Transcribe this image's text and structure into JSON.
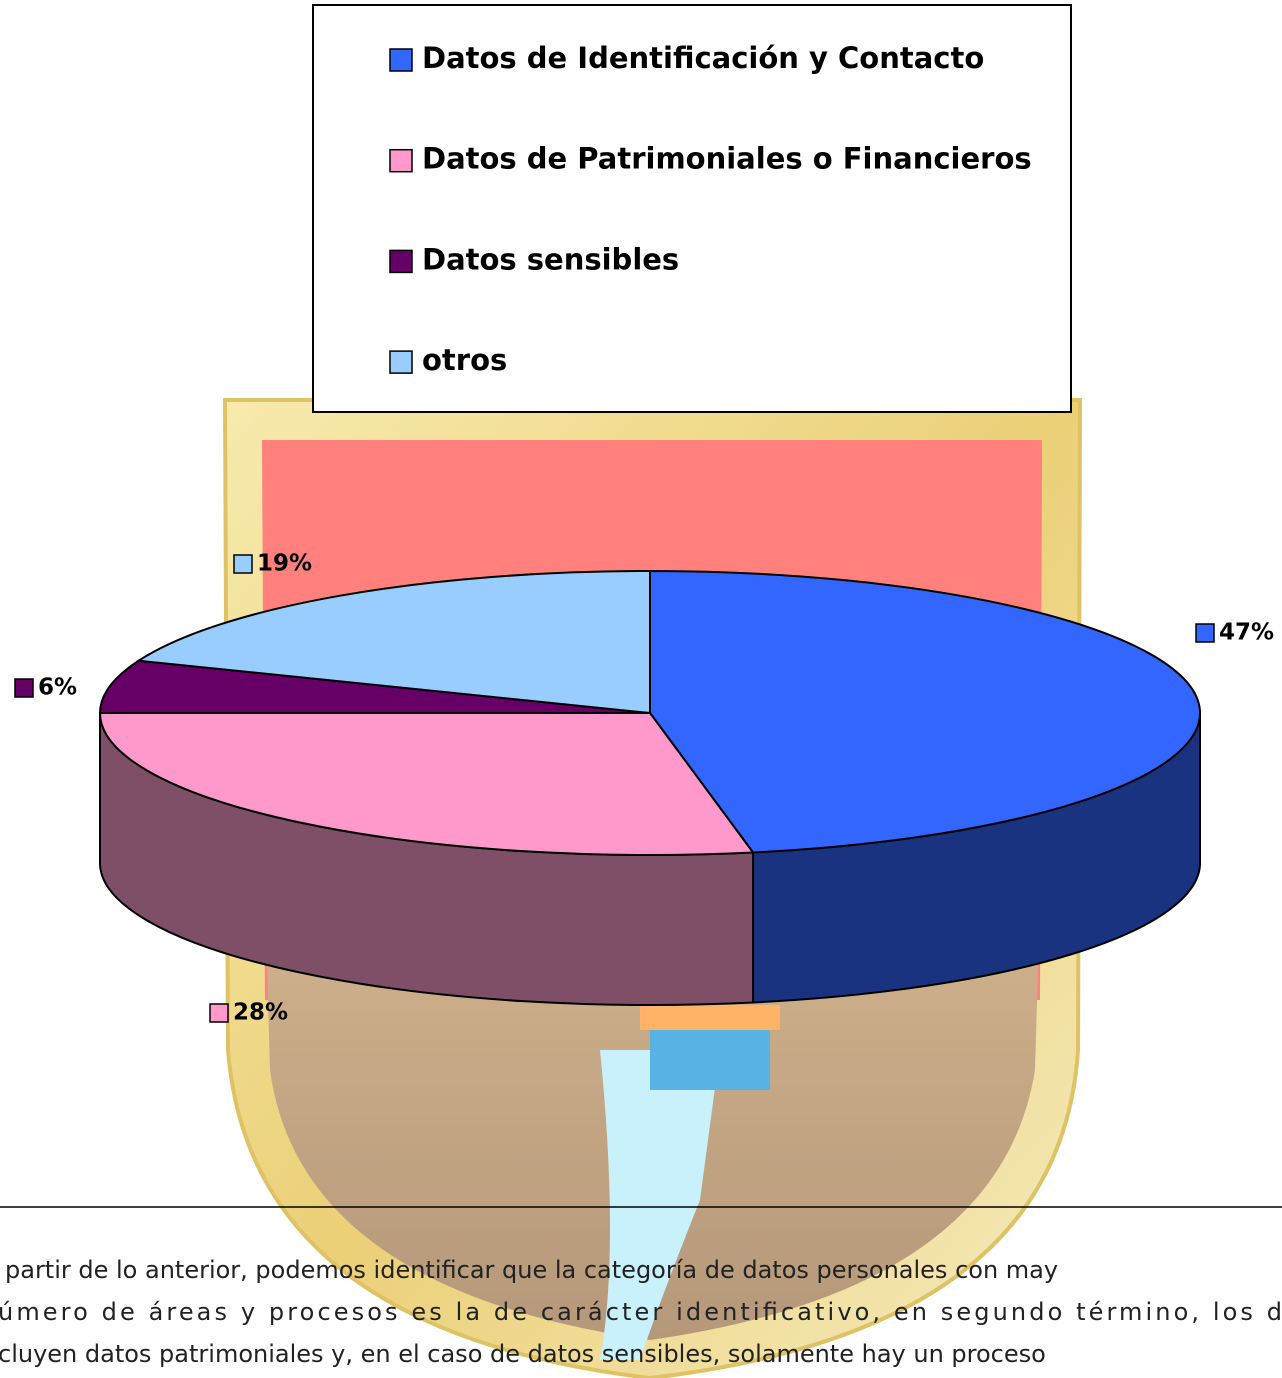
{
  "chart_data": {
    "type": "pie",
    "categories": [
      "Datos de Identificación y Contacto",
      "Datos de Patrimoniales o Financieros",
      "Datos sensibles",
      "otros"
    ],
    "values": [
      47,
      28,
      6,
      19
    ],
    "value_labels": [
      "47%",
      "28%",
      "6%",
      "19%"
    ],
    "colors": [
      "#3366ff",
      "#ff99cc",
      "#660066",
      "#99ccff"
    ]
  },
  "paragraph": [
    "partir de lo anterior, podemos identificar que la categoría de datos personales con may",
    "úmero de áreas y procesos es la de carácter identificativo, en segundo término, los d",
    "cluyen datos patrimoniales y, en el caso de datos sensibles, solamente hay un proceso"
  ]
}
